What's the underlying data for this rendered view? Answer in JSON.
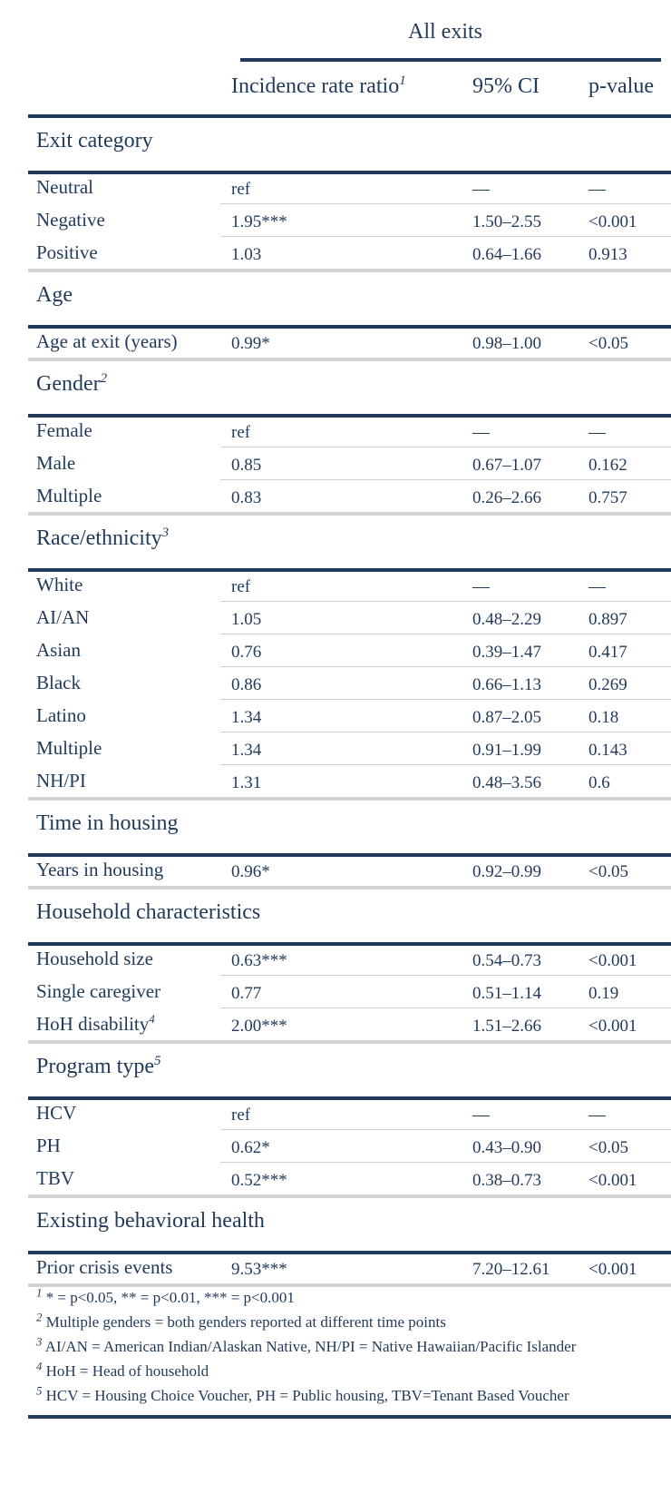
{
  "table": {
    "spanner": "All exits",
    "columns": {
      "irr": "Incidence rate ratio",
      "irr_sup": "1",
      "ci": "95% CI",
      "p": "p-value"
    },
    "groups": [
      {
        "label": "Exit category",
        "sup": "",
        "rows": [
          {
            "label": "Neutral",
            "sup": "",
            "irr": "ref",
            "ci": "—",
            "p": "—"
          },
          {
            "label": "Negative",
            "sup": "",
            "irr": "1.95***",
            "ci": "1.50–2.55",
            "p": "<0.001"
          },
          {
            "label": "Positive",
            "sup": "",
            "irr": "1.03",
            "ci": "0.64–1.66",
            "p": "0.913"
          }
        ]
      },
      {
        "label": "Age",
        "sup": "",
        "rows": [
          {
            "label": "Age at exit (years)",
            "sup": "",
            "irr": "0.99*",
            "ci": "0.98–1.00",
            "p": "<0.05"
          }
        ]
      },
      {
        "label": "Gender",
        "sup": "2",
        "rows": [
          {
            "label": "Female",
            "sup": "",
            "irr": "ref",
            "ci": "—",
            "p": "—"
          },
          {
            "label": "Male",
            "sup": "",
            "irr": "0.85",
            "ci": "0.67–1.07",
            "p": "0.162"
          },
          {
            "label": "Multiple",
            "sup": "",
            "irr": "0.83",
            "ci": "0.26–2.66",
            "p": "0.757"
          }
        ]
      },
      {
        "label": "Race/ethnicity",
        "sup": "3",
        "rows": [
          {
            "label": "White",
            "sup": "",
            "irr": "ref",
            "ci": "—",
            "p": "—"
          },
          {
            "label": "AI/AN",
            "sup": "",
            "irr": "1.05",
            "ci": "0.48–2.29",
            "p": "0.897"
          },
          {
            "label": "Asian",
            "sup": "",
            "irr": "0.76",
            "ci": "0.39–1.47",
            "p": "0.417"
          },
          {
            "label": "Black",
            "sup": "",
            "irr": "0.86",
            "ci": "0.66–1.13",
            "p": "0.269"
          },
          {
            "label": "Latino",
            "sup": "",
            "irr": "1.34",
            "ci": "0.87–2.05",
            "p": "0.18"
          },
          {
            "label": "Multiple",
            "sup": "",
            "irr": "1.34",
            "ci": "0.91–1.99",
            "p": "0.143"
          },
          {
            "label": "NH/PI",
            "sup": "",
            "irr": "1.31",
            "ci": "0.48–3.56",
            "p": "0.6"
          }
        ]
      },
      {
        "label": "Time in housing",
        "sup": "",
        "rows": [
          {
            "label": "Years in housing",
            "sup": "",
            "irr": "0.96*",
            "ci": "0.92–0.99",
            "p": "<0.05"
          }
        ]
      },
      {
        "label": "Household characteristics",
        "sup": "",
        "rows": [
          {
            "label": "Household size",
            "sup": "",
            "irr": "0.63***",
            "ci": "0.54–0.73",
            "p": "<0.001"
          },
          {
            "label": "Single caregiver",
            "sup": "",
            "irr": "0.77",
            "ci": "0.51–1.14",
            "p": "0.19"
          },
          {
            "label": "HoH disability",
            "sup": "4",
            "irr": "2.00***",
            "ci": "1.51–2.66",
            "p": "<0.001"
          }
        ]
      },
      {
        "label": "Program type",
        "sup": "5",
        "rows": [
          {
            "label": "HCV",
            "sup": "",
            "irr": "ref",
            "ci": "—",
            "p": "—"
          },
          {
            "label": "PH",
            "sup": "",
            "irr": "0.62*",
            "ci": "0.43–0.90",
            "p": "<0.05"
          },
          {
            "label": "TBV",
            "sup": "",
            "irr": "0.52***",
            "ci": "0.38–0.73",
            "p": "<0.001"
          }
        ]
      },
      {
        "label": "Existing behavioral health",
        "sup": "",
        "rows": [
          {
            "label": "Prior crisis events",
            "sup": "",
            "irr": "9.53***",
            "ci": "7.20–12.61",
            "p": "<0.001"
          }
        ]
      }
    ],
    "footnotes": [
      {
        "mark": "1",
        "text": "* = p<0.05, ** = p<0.01, *** = p<0.001"
      },
      {
        "mark": "2",
        "text": "Multiple genders = both genders reported at different time points"
      },
      {
        "mark": "3",
        "text": "AI/AN = American Indian/Alaskan Native, NH/PI = Native Hawaiian/Pacific Islander"
      },
      {
        "mark": "4",
        "text": "HoH = Head of household"
      },
      {
        "mark": "5",
        "text": "HCV = Housing Choice Voucher, PH = Public housing, TBV=Tenant Based Voucher"
      }
    ]
  }
}
